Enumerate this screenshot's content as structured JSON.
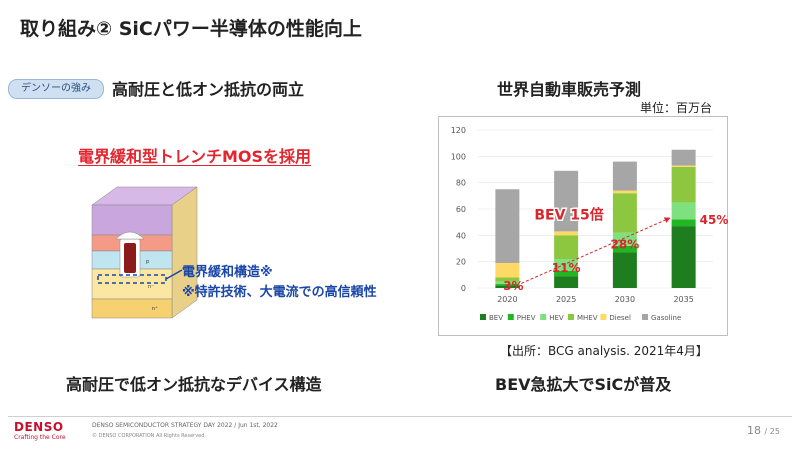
{
  "header": {
    "title": "取り組み② SiCパワー半導体の性能向上"
  },
  "left": {
    "badge": "デンソーの強み",
    "subtitle": "高耐圧と低オン抵抗の両立",
    "technology": "電界緩和型トレンチMOSを採用",
    "structure_note_1": "電界緩和構造※",
    "structure_note_2": "※特許技術、大電流での高信頼性",
    "bottom": "高耐圧で低オン抵抗なデバイス構造",
    "diagram_labels": {
      "p": "p",
      "n_minus": "n⁻",
      "n_plus": "n⁺"
    }
  },
  "right": {
    "subtitle": "世界自動車販売予測",
    "unit": "単位：百万台",
    "source": "【出所：BCG analysis. 2021年4月】",
    "bottom": "BEV急拡大でSiCが普及"
  },
  "chart_data": {
    "type": "bar",
    "stacked": true,
    "categories": [
      "2020",
      "2025",
      "2030",
      "2035"
    ],
    "ylim": [
      0,
      120
    ],
    "yticks": [
      0,
      20,
      40,
      60,
      80,
      100,
      120
    ],
    "grid": true,
    "legend_position": "bottom",
    "series": [
      {
        "name": "BEV",
        "color": "#1e7d1e",
        "values": [
          2,
          9,
          27,
          47
        ]
      },
      {
        "name": "PHEV",
        "color": "#22b622",
        "values": [
          1,
          4,
          5,
          5
        ]
      },
      {
        "name": "HEV",
        "color": "#7fe07f",
        "values": [
          2,
          9,
          10,
          13
        ]
      },
      {
        "name": "MHEV",
        "color": "#8dc63f",
        "values": [
          3,
          18,
          30,
          27
        ]
      },
      {
        "name": "Diesel",
        "color": "#ffd966",
        "values": [
          11,
          3,
          2,
          1
        ]
      },
      {
        "name": "Gasoline",
        "color": "#a6a6a6",
        "values": [
          56,
          46,
          22,
          12
        ]
      }
    ],
    "share_labels": [
      "3%",
      "11%",
      "28%",
      "45%"
    ],
    "annotation": "BEV 15倍",
    "colors": {
      "share_label": "#d9262c",
      "annotation": "#d9262c",
      "trend_line": "#d9262c"
    }
  },
  "footer": {
    "logo": "DENSO",
    "tagline": "Crafting the Core",
    "event": "DENSO SEMICONDUCTOR STRATEGY DAY 2022 / Jun 1st, 2022",
    "copyright": "© DENSO CORPORATION All Rights Reserved.",
    "page": "18",
    "page_total": "/ 25"
  }
}
